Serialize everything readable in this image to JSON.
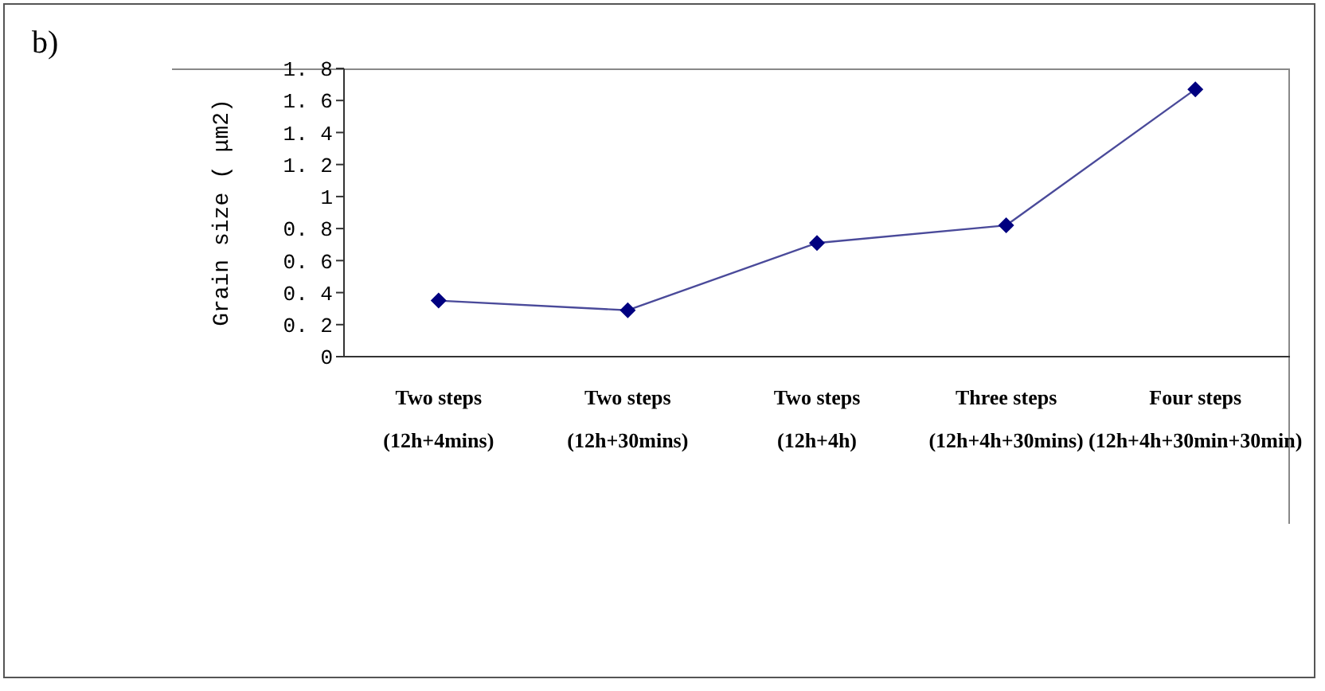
{
  "chart_data": {
    "type": "line",
    "ylabel": "Grain size ( μm2)",
    "annotations": [
      "b)"
    ],
    "categories": [
      "Two steps\n(12h+4mins)",
      "Two steps\n(12h+30mins)",
      "Two steps\n(12h+4h)",
      "Three steps\n(12h+4h+30mins)",
      "Four steps\n(12h+4h+30min+30min)"
    ],
    "series": [
      {
        "color": "#000080",
        "values": [
          0.35,
          0.29,
          0.71,
          0.82,
          1.67
        ]
      }
    ],
    "ylim": [
      0,
      1.8
    ],
    "yticks": [
      0,
      {
        "value": 0.2,
        "label": "0. 2"
      },
      {
        "value": 0.4,
        "label": "0. 4"
      },
      {
        "value": 0.6,
        "label": "0. 6"
      },
      {
        "value": 0.8,
        "label": "0. 8"
      },
      1,
      {
        "value": 1.2,
        "label": "1. 2"
      },
      {
        "value": 1.4,
        "label": "1. 4"
      },
      {
        "value": 1.6,
        "label": "1. 6"
      },
      {
        "value": 1.8,
        "label": "1. 8"
      }
    ],
    "grid": false,
    "legend": false,
    "marker": "diamond",
    "line_style": "solid"
  }
}
